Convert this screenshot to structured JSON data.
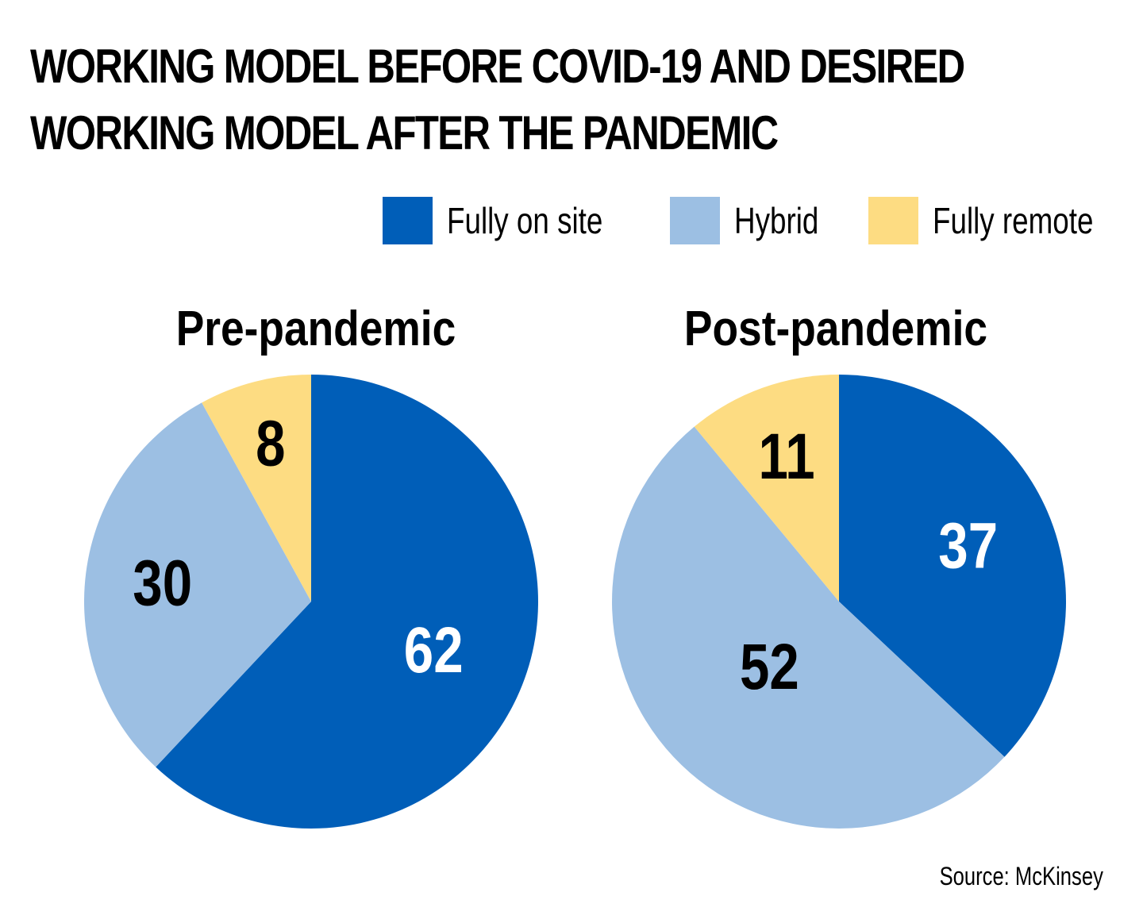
{
  "title": "WORKING MODEL BEFORE COVID-19 AND DESIRED WORKING MODEL AFTER THE PANDEMIC",
  "source": "Source: McKinsey",
  "legend": [
    {
      "label": "Fully on site",
      "color": "#005EB8"
    },
    {
      "label": "Hybrid",
      "color": "#9CBFE3"
    },
    {
      "label": "Fully remote",
      "color": "#FDDC82"
    }
  ],
  "chart_data": [
    {
      "type": "pie",
      "title": "Pre-pandemic",
      "categories": [
        "Fully on site",
        "Hybrid",
        "Fully remote"
      ],
      "values": [
        62,
        30,
        8
      ],
      "value_labels": [
        "62",
        "30",
        "8"
      ],
      "label_colors": [
        "#ffffff",
        "#000000",
        "#000000"
      ]
    },
    {
      "type": "pie",
      "title": "Post-pandemic",
      "categories": [
        "Fully on site",
        "Hybrid",
        "Fully remote"
      ],
      "values": [
        37,
        52,
        11
      ],
      "value_labels": [
        "37",
        "52",
        "11"
      ],
      "label_colors": [
        "#ffffff",
        "#000000",
        "#000000"
      ]
    }
  ]
}
